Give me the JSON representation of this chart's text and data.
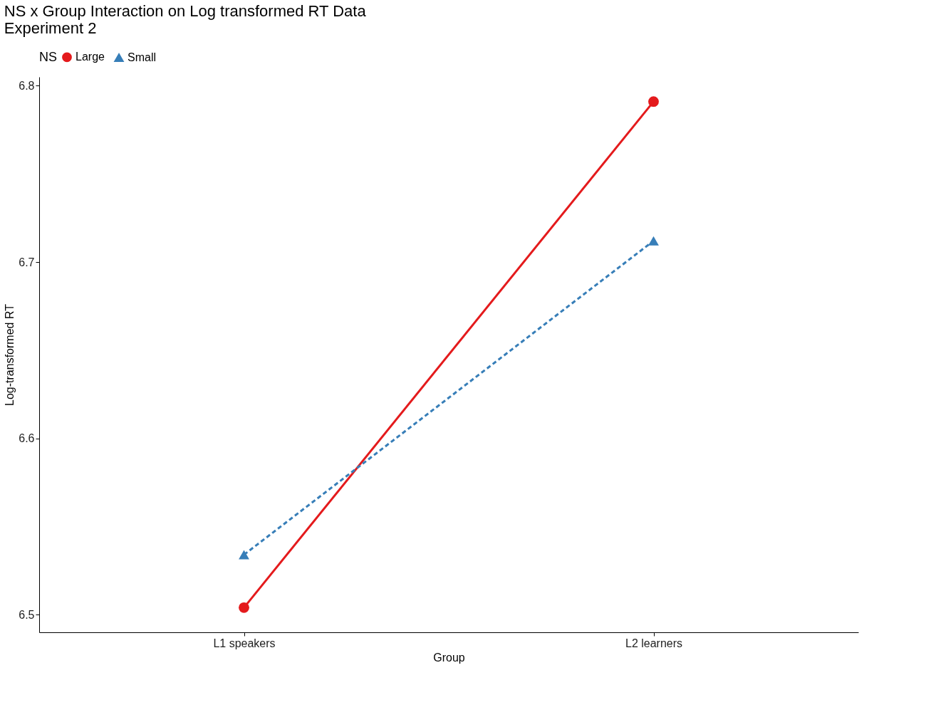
{
  "chart_data": {
    "type": "line",
    "title": "NS x Group Interaction on Log transformed RT Data",
    "subtitle": "Experiment 2",
    "xlabel": "Group",
    "ylabel": "Log-transformed RT",
    "legend_title": "NS",
    "categories": [
      "L1 speakers",
      "L2 learners"
    ],
    "series": [
      {
        "name": "Large",
        "color": "#e41a1c",
        "marker": "circle",
        "line_style": "solid",
        "values": [
          6.504,
          6.791
        ]
      },
      {
        "name": "Small",
        "color": "#377eb8",
        "marker": "triangle",
        "line_style": "dashed",
        "values": [
          6.534,
          6.712
        ]
      }
    ],
    "ylim": [
      6.49,
      6.805
    ],
    "yticks": [
      6.5,
      6.6,
      6.7,
      6.8
    ],
    "grid": false,
    "legend": "top"
  }
}
